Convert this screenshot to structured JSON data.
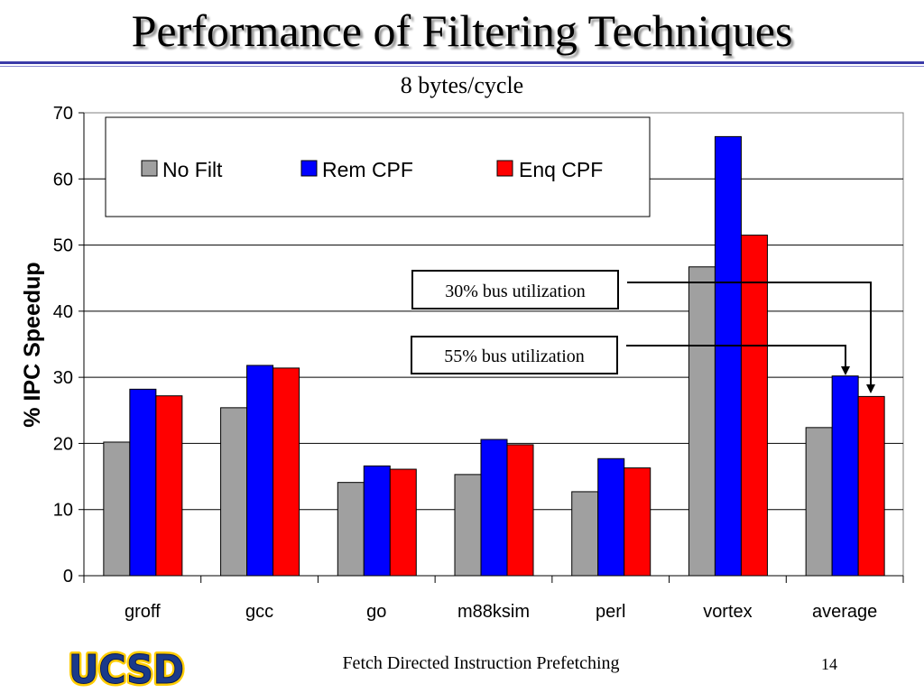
{
  "slide": {
    "title": "Performance of Filtering Techniques",
    "subtitle": "8 bytes/cycle",
    "footer": "Fetch Directed Instruction Prefetching",
    "page_number": "14",
    "logo_text": "UCSD"
  },
  "annotations": {
    "label_30": "30% bus utilization",
    "label_55": "55% bus utilization"
  },
  "chart_data": {
    "type": "bar",
    "title": "",
    "xlabel": "",
    "ylabel": "% IPC Speedup",
    "ylim": [
      0,
      70
    ],
    "yticks": [
      0,
      10,
      20,
      30,
      40,
      50,
      60,
      70
    ],
    "categories": [
      "groff",
      "gcc",
      "go",
      "m88ksim",
      "perl",
      "vortex",
      "average"
    ],
    "series": [
      {
        "name": "No Filt",
        "color": "#a0a0a0",
        "values": [
          20.2,
          25.4,
          14.1,
          15.3,
          12.7,
          46.7,
          22.4
        ]
      },
      {
        "name": "Rem CPF",
        "color": "#0000ff",
        "values": [
          28.2,
          31.8,
          16.6,
          20.6,
          17.7,
          66.4,
          30.2
        ]
      },
      {
        "name": "Enq CPF",
        "color": "#ff0000",
        "values": [
          27.2,
          31.4,
          16.1,
          19.8,
          16.3,
          51.5,
          27.1
        ]
      }
    ],
    "grid": true,
    "legend_position": "top-left"
  }
}
